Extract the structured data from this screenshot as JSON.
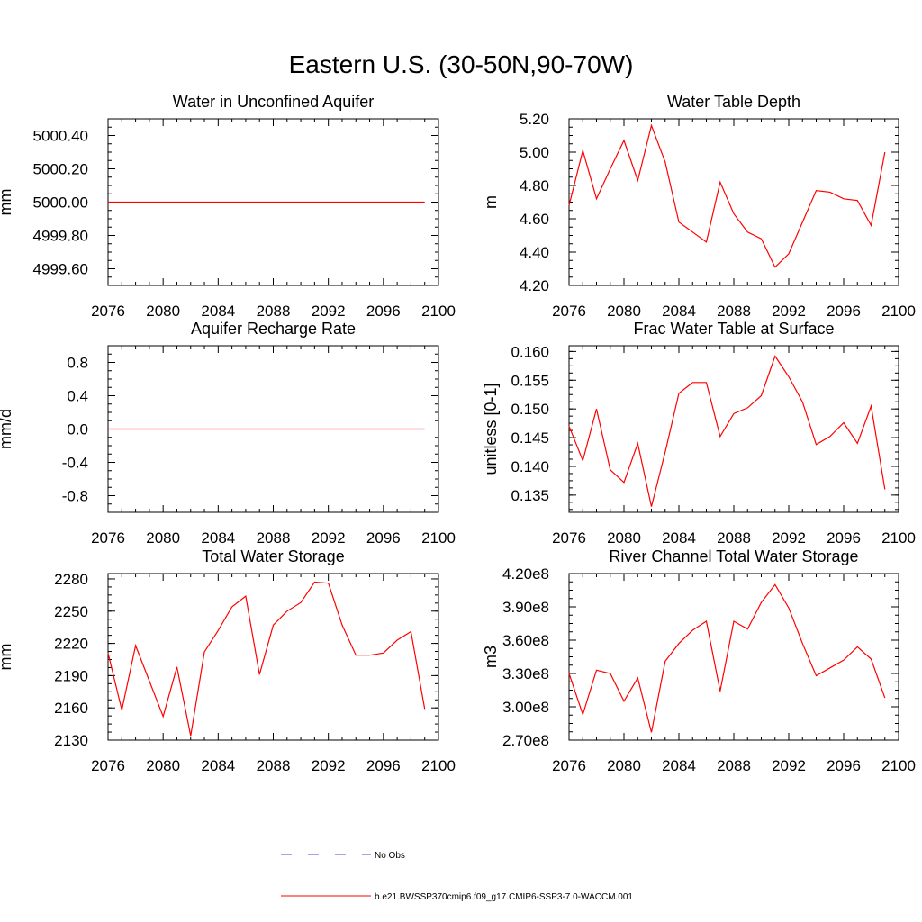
{
  "figure_title": "Eastern U.S. (30-50N,90-70W)",
  "legend": {
    "obs_label": "No Obs",
    "obs_color": "#4a4ad0",
    "model_label": "b.e21.BWSSP370cmip6.f09_g17.CMIP6-SSP3-7.0-WACCM.001",
    "model_color": "#ff0000"
  },
  "chart_data": [
    {
      "type": "line",
      "title": "Water in Unconfined Aquifer",
      "ylabel": "mm",
      "xlabel": "",
      "xlim": [
        2076,
        2100
      ],
      "ylim": [
        4999.5,
        5000.5
      ],
      "xticks": [
        "2076",
        "2080",
        "2084",
        "2088",
        "2092",
        "2096",
        "2100"
      ],
      "yticks": [
        {
          "v": 4999.6,
          "label": "4999.60"
        },
        {
          "v": 4999.8,
          "label": "4999.80"
        },
        {
          "v": 5000.0,
          "label": "5000.00"
        },
        {
          "v": 5000.2,
          "label": "5000.20"
        },
        {
          "v": 5000.4,
          "label": "5000.40"
        }
      ],
      "x": [
        2076,
        2077,
        2078,
        2079,
        2080,
        2081,
        2082,
        2083,
        2084,
        2085,
        2086,
        2087,
        2088,
        2089,
        2090,
        2091,
        2092,
        2093,
        2094,
        2095,
        2096,
        2097,
        2098,
        2099
      ],
      "values": [
        5000,
        5000,
        5000,
        5000,
        5000,
        5000,
        5000,
        5000,
        5000,
        5000,
        5000,
        5000,
        5000,
        5000,
        5000,
        5000,
        5000,
        5000,
        5000,
        5000,
        5000,
        5000,
        5000,
        5000
      ]
    },
    {
      "type": "line",
      "title": "Water Table Depth",
      "ylabel": "m",
      "xlabel": "",
      "xlim": [
        2076,
        2100
      ],
      "ylim": [
        4.2,
        5.2
      ],
      "xticks": [
        "2076",
        "2080",
        "2084",
        "2088",
        "2092",
        "2096",
        "2100"
      ],
      "yticks": [
        {
          "v": 4.2,
          "label": "4.20"
        },
        {
          "v": 4.4,
          "label": "4.40"
        },
        {
          "v": 4.6,
          "label": "4.60"
        },
        {
          "v": 4.8,
          "label": "4.80"
        },
        {
          "v": 5.0,
          "label": "5.00"
        },
        {
          "v": 5.2,
          "label": "5.20"
        }
      ],
      "x": [
        2076,
        2077,
        2078,
        2079,
        2080,
        2081,
        2082,
        2083,
        2084,
        2085,
        2086,
        2087,
        2088,
        2089,
        2090,
        2091,
        2092,
        2093,
        2094,
        2095,
        2096,
        2097,
        2098,
        2099
      ],
      "values": [
        4.68,
        5.01,
        4.72,
        4.9,
        5.07,
        4.83,
        5.16,
        4.94,
        4.58,
        4.52,
        4.46,
        4.82,
        4.63,
        4.52,
        4.48,
        4.31,
        4.39,
        4.58,
        4.77,
        4.76,
        4.72,
        4.71,
        4.56,
        5.0
      ]
    },
    {
      "type": "line",
      "title": "Aquifer Recharge Rate",
      "ylabel": "mm/d",
      "xlabel": "",
      "xlim": [
        2076,
        2100
      ],
      "ylim": [
        -1.0,
        1.0
      ],
      "xticks": [
        "2076",
        "2080",
        "2084",
        "2088",
        "2092",
        "2096",
        "2100"
      ],
      "yticks": [
        {
          "v": -0.8,
          "label": "-0.8"
        },
        {
          "v": -0.4,
          "label": "-0.4"
        },
        {
          "v": 0.0,
          "label": "0.0"
        },
        {
          "v": 0.4,
          "label": "0.4"
        },
        {
          "v": 0.8,
          "label": "0.8"
        }
      ],
      "x": [
        2076,
        2077,
        2078,
        2079,
        2080,
        2081,
        2082,
        2083,
        2084,
        2085,
        2086,
        2087,
        2088,
        2089,
        2090,
        2091,
        2092,
        2093,
        2094,
        2095,
        2096,
        2097,
        2098,
        2099
      ],
      "values": [
        0,
        0,
        0,
        0,
        0,
        0,
        0,
        0,
        0,
        0,
        0,
        0,
        0,
        0,
        0,
        0,
        0,
        0,
        0,
        0,
        0,
        0,
        0,
        0
      ]
    },
    {
      "type": "line",
      "title": "Frac Water Table at Surface",
      "ylabel": "unitless [0-1]",
      "xlabel": "",
      "xlim": [
        2076,
        2100
      ],
      "ylim": [
        0.132,
        0.161
      ],
      "xticks": [
        "2076",
        "2080",
        "2084",
        "2088",
        "2092",
        "2096",
        "2100"
      ],
      "yticks": [
        {
          "v": 0.135,
          "label": "0.135"
        },
        {
          "v": 0.14,
          "label": "0.140"
        },
        {
          "v": 0.145,
          "label": "0.145"
        },
        {
          "v": 0.15,
          "label": "0.150"
        },
        {
          "v": 0.155,
          "label": "0.155"
        },
        {
          "v": 0.16,
          "label": "0.160"
        }
      ],
      "x": [
        2076,
        2077,
        2078,
        2079,
        2080,
        2081,
        2082,
        2083,
        2084,
        2085,
        2086,
        2087,
        2088,
        2089,
        2090,
        2091,
        2092,
        2093,
        2094,
        2095,
        2096,
        2097,
        2098,
        2099
      ],
      "values": [
        0.147,
        0.141,
        0.15,
        0.1394,
        0.1372,
        0.144,
        0.133,
        0.1425,
        0.1527,
        0.1546,
        0.1546,
        0.1452,
        0.1492,
        0.1502,
        0.1523,
        0.1592,
        0.1556,
        0.1512,
        0.1438,
        0.1452,
        0.1476,
        0.144,
        0.1505,
        0.136
      ]
    },
    {
      "type": "line",
      "title": "Total Water Storage",
      "ylabel": "mm",
      "xlabel": "",
      "xlim": [
        2076,
        2100
      ],
      "ylim": [
        2130,
        2285
      ],
      "xticks": [
        "2076",
        "2080",
        "2084",
        "2088",
        "2092",
        "2096",
        "2100"
      ],
      "yticks": [
        {
          "v": 2130,
          "label": "2130"
        },
        {
          "v": 2160,
          "label": "2160"
        },
        {
          "v": 2190,
          "label": "2190"
        },
        {
          "v": 2220,
          "label": "2220"
        },
        {
          "v": 2250,
          "label": "2250"
        },
        {
          "v": 2280,
          "label": "2280"
        }
      ],
      "x": [
        2076,
        2077,
        2078,
        2079,
        2080,
        2081,
        2082,
        2083,
        2084,
        2085,
        2086,
        2087,
        2088,
        2089,
        2090,
        2091,
        2092,
        2093,
        2094,
        2095,
        2096,
        2097,
        2098,
        2099
      ],
      "values": [
        2211,
        2158,
        2218,
        2185,
        2152,
        2198,
        2134,
        2212,
        2232,
        2254,
        2264,
        2191,
        2237,
        2250,
        2258,
        2277,
        2276,
        2237,
        2209,
        2209,
        2211,
        2223,
        2231,
        2159
      ]
    },
    {
      "type": "line",
      "title": "River Channel Total Water Storage",
      "ylabel": "m3",
      "xlabel": "",
      "xlim": [
        2076,
        2100
      ],
      "ylim": [
        270000000.0,
        420000000.0
      ],
      "xticks": [
        "2076",
        "2080",
        "2084",
        "2088",
        "2092",
        "2096",
        "2100"
      ],
      "yticks": [
        {
          "v": 270000000.0,
          "label": "2.70e8"
        },
        {
          "v": 300000000.0,
          "label": "3.00e8"
        },
        {
          "v": 330000000.0,
          "label": "3.30e8"
        },
        {
          "v": 360000000.0,
          "label": "3.60e8"
        },
        {
          "v": 390000000.0,
          "label": "3.90e8"
        },
        {
          "v": 420000000.0,
          "label": "4.20e8"
        }
      ],
      "x": [
        2076,
        2077,
        2078,
        2079,
        2080,
        2081,
        2082,
        2083,
        2084,
        2085,
        2086,
        2087,
        2088,
        2089,
        2090,
        2091,
        2092,
        2093,
        2094,
        2095,
        2096,
        2097,
        2098,
        2099
      ],
      "values": [
        330000000.0,
        293000000.0,
        333000000.0,
        330000000.0,
        305000000.0,
        326000000.0,
        277000000.0,
        341000000.0,
        357000000.0,
        369000000.0,
        377000000.0,
        314000000.0,
        377000000.0,
        370000000.0,
        394000000.0,
        410000000.0,
        389000000.0,
        357000000.0,
        328000000.0,
        335000000.0,
        342000000.0,
        354000000.0,
        343000000.0,
        308000000.0
      ]
    }
  ]
}
